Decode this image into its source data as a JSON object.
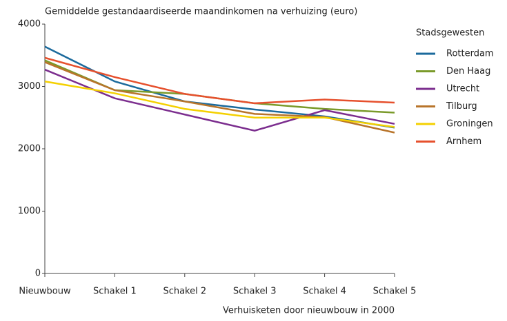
{
  "chart_data": {
    "type": "line",
    "title": "Gemiddelde gestandaardiseerde maandinkomen na verhuizing (euro)",
    "x_label": "Verhuisketen door nieuwbouw in 2000",
    "legend_title": "Stadsgewesten",
    "categories": [
      "Nieuwbouw",
      "Schakel 1",
      "Schakel 2",
      "Schakel 3",
      "Schakel 4",
      "Schakel 5"
    ],
    "series": [
      {
        "name": "Rotterdam",
        "color": "#1b6a9c",
        "values": [
          3640,
          3080,
          2760,
          2630,
          2520,
          2340
        ]
      },
      {
        "name": "Den Haag",
        "color": "#7a9a2a",
        "values": [
          3420,
          2940,
          2880,
          2730,
          2640,
          2580
        ]
      },
      {
        "name": "Utrecht",
        "color": "#7b2d8e",
        "values": [
          3270,
          2810,
          2550,
          2290,
          2620,
          2400
        ]
      },
      {
        "name": "Tilburg",
        "color": "#b8742a",
        "values": [
          3390,
          2940,
          2760,
          2560,
          2510,
          2260
        ]
      },
      {
        "name": "Groningen",
        "color": "#f4d000",
        "values": [
          3080,
          2890,
          2640,
          2500,
          2500,
          2350
        ]
      },
      {
        "name": "Arnhem",
        "color": "#e6502d",
        "values": [
          3460,
          3150,
          2880,
          2730,
          2790,
          2740
        ]
      }
    ],
    "ylim": [
      0,
      4000
    ],
    "yticks": [
      0,
      1000,
      2000,
      3000,
      4000
    ],
    "grid": false,
    "legend": "right"
  }
}
